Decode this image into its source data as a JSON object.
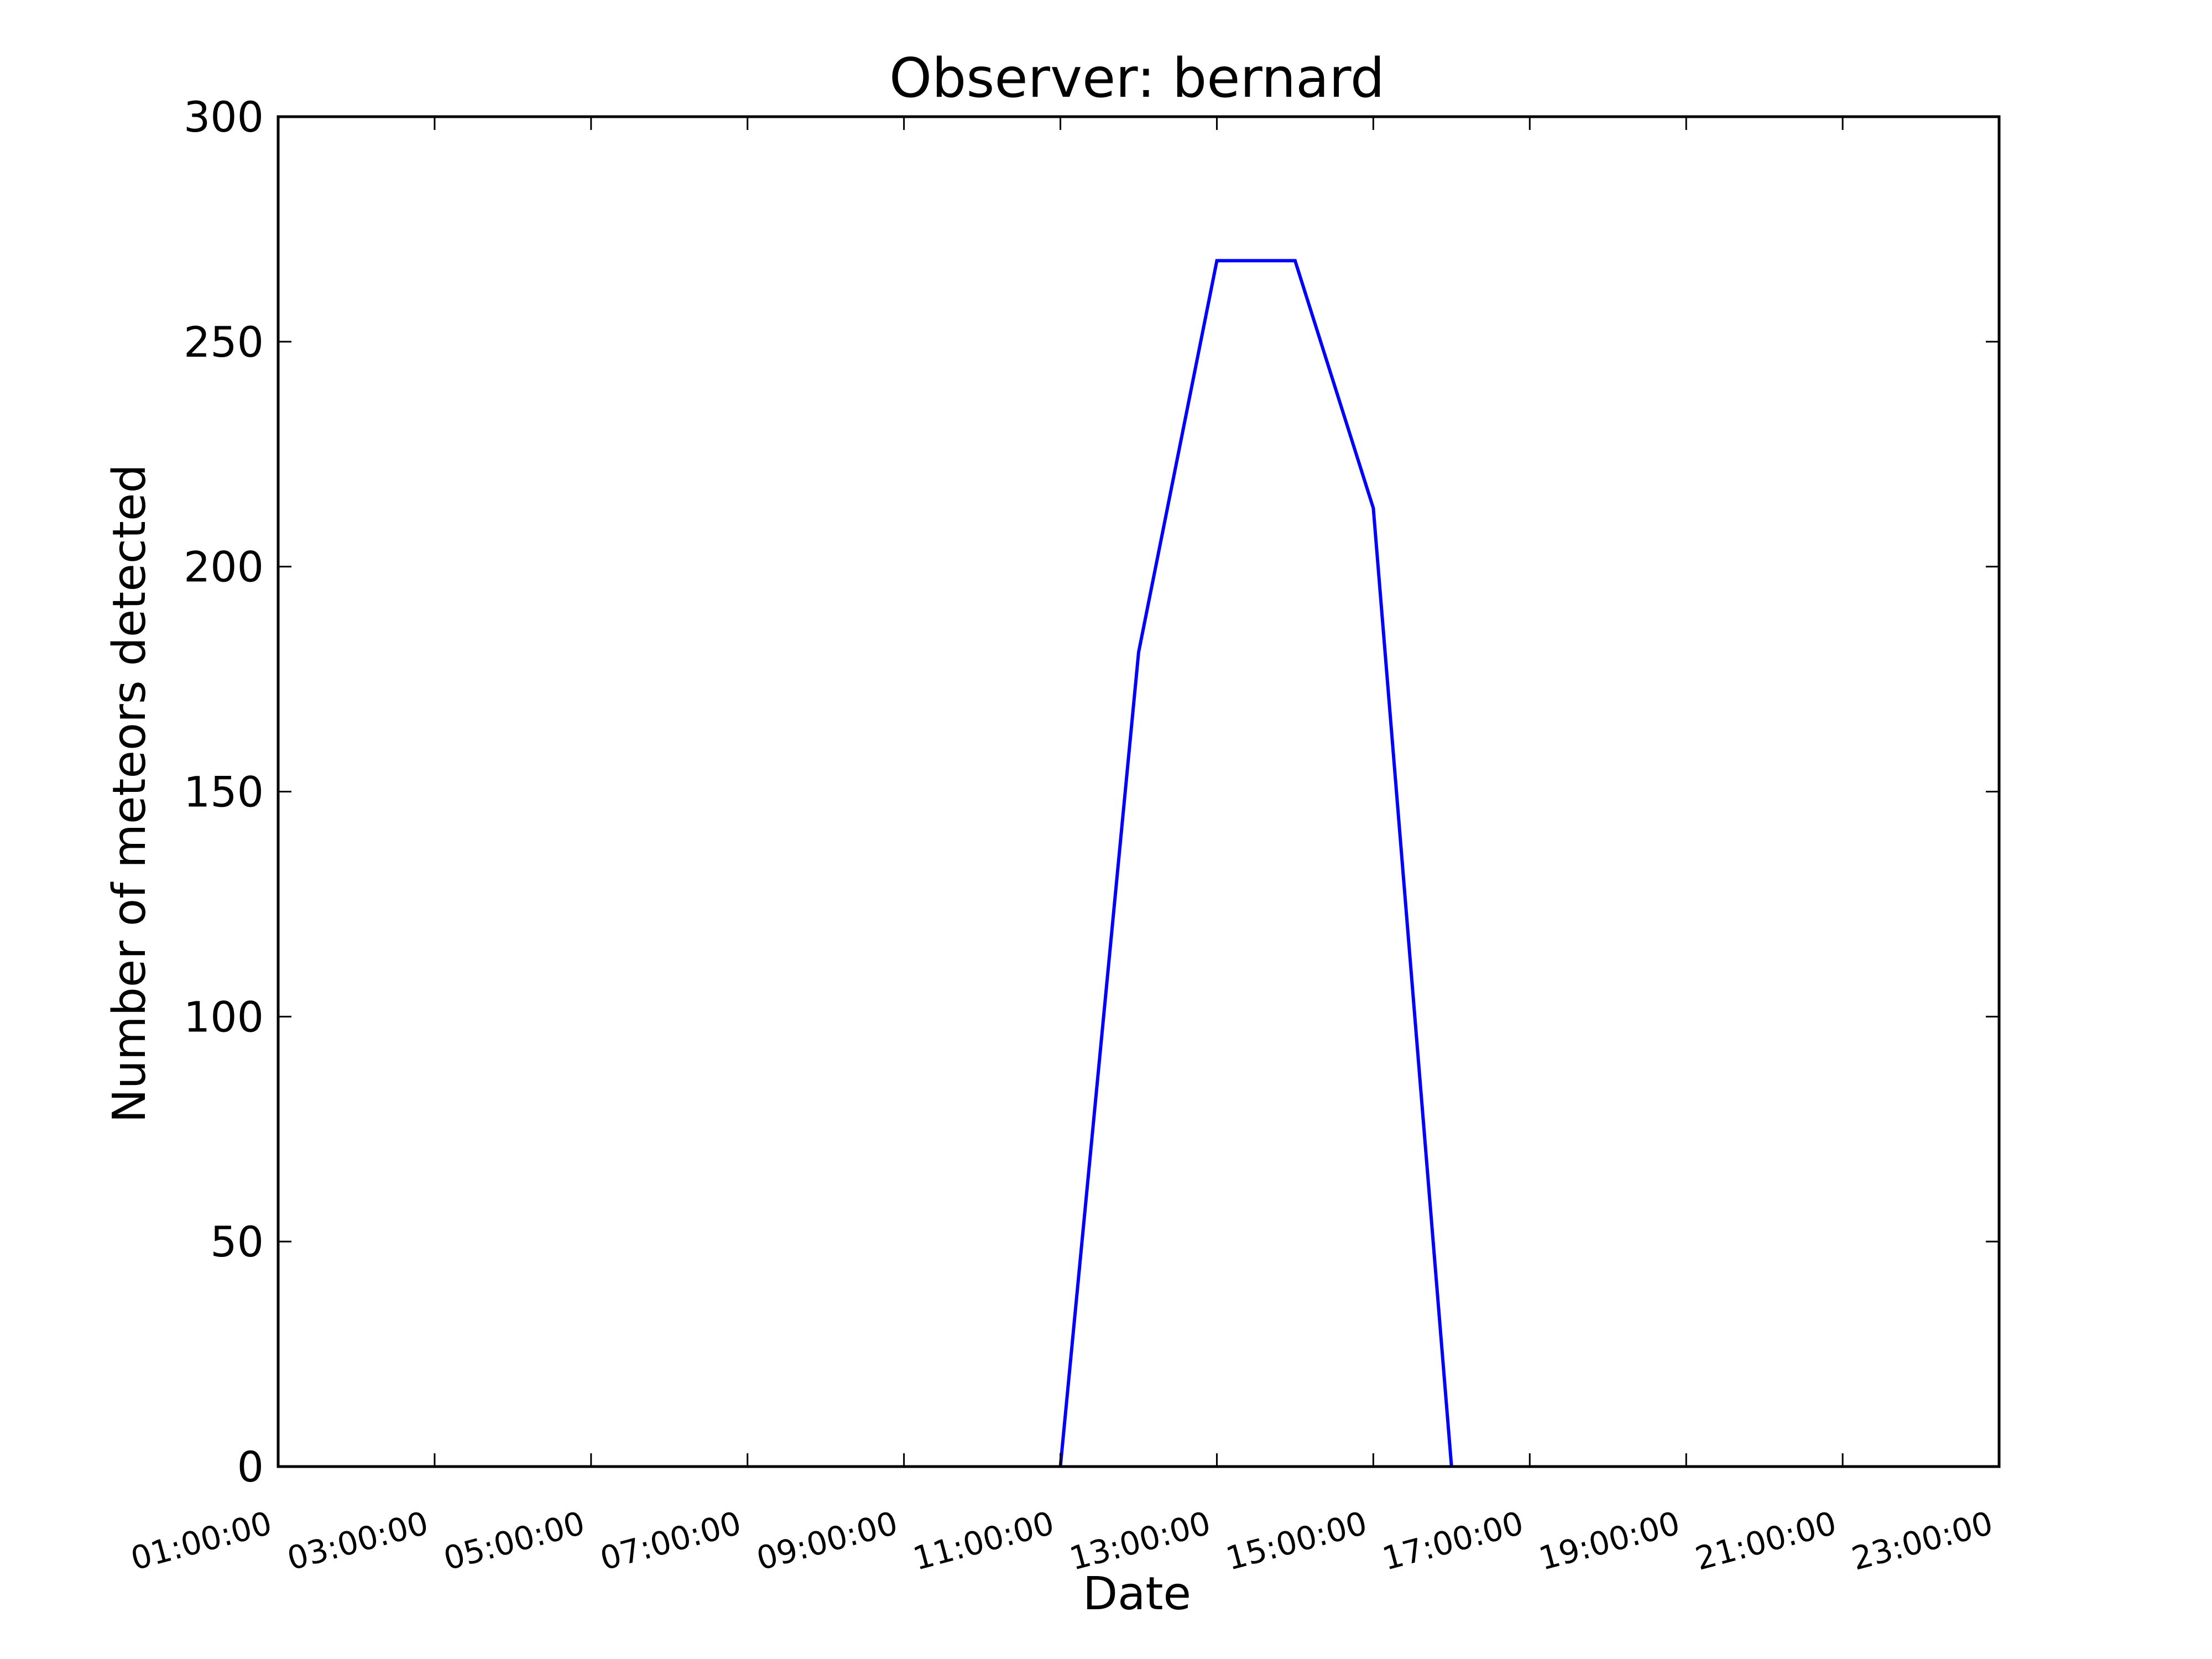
{
  "chart_data": {
    "type": "line",
    "title": "Observer: bernard",
    "xlabel": "Date",
    "ylabel": "Number of meteors detected",
    "ylim": [
      0,
      300
    ],
    "xlim": [
      "01:00:00",
      "23:00:00"
    ],
    "x_ticks": [
      "01:00:00",
      "03:00:00",
      "05:00:00",
      "07:00:00",
      "09:00:00",
      "11:00:00",
      "13:00:00",
      "15:00:00",
      "17:00:00",
      "19:00:00",
      "21:00:00",
      "23:00:00"
    ],
    "y_ticks": [
      0,
      50,
      100,
      150,
      200,
      250,
      300
    ],
    "grid": false,
    "line_color": "#0000ff",
    "series": [
      {
        "x": [
          "11:00:00",
          "12:00:00",
          "13:00:00",
          "14:00:00",
          "15:00:00",
          "16:00:00"
        ],
        "values": [
          0,
          181,
          268,
          268,
          213,
          0
        ]
      }
    ]
  }
}
